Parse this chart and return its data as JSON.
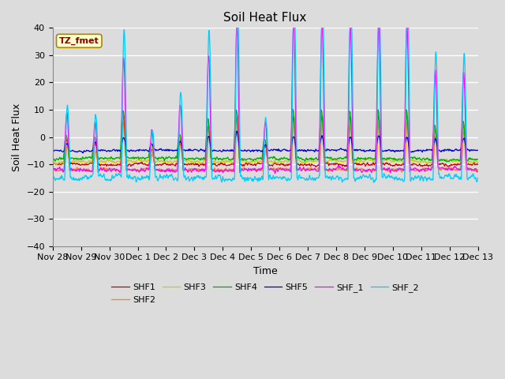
{
  "title": "Soil Heat Flux",
  "xlabel": "Time",
  "ylabel": "Soil Heat Flux",
  "ylim": [
    -40,
    40
  ],
  "series_names": [
    "SHF1",
    "SHF2",
    "SHF3",
    "SHF4",
    "SHF5",
    "SHF_1",
    "SHF_2"
  ],
  "series_colors": [
    "#cc0000",
    "#ff8800",
    "#cccc00",
    "#00aa00",
    "#0000cc",
    "#ff00ff",
    "#00ccff"
  ],
  "annotation_text": "TZ_fmet",
  "annotation_color": "#880000",
  "annotation_bg": "#ffffcc",
  "annotation_border": "#aa8800",
  "background_color": "#dcdcdc",
  "tick_labels": [
    "Nov 28",
    "Nov 29",
    "Nov 30",
    "Dec 1",
    "Dec 2",
    "Dec 3",
    "Dec 4",
    "Dec 5",
    "Dec 6",
    "Dec 7",
    "Dec 8",
    "Dec 9",
    "Dec 10",
    "Dec 11",
    "Dec 12",
    "Dec 13"
  ],
  "legend_entries": [
    "SHF1",
    "SHF2",
    "SHF3",
    "SHF4",
    "SHF5",
    "SHF_1",
    "SHF_2"
  ]
}
